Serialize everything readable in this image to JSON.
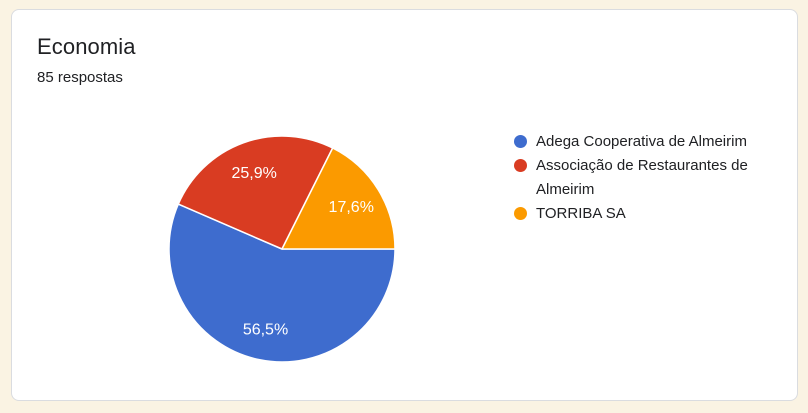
{
  "card": {
    "title": "Economia",
    "subtitle": "85 respostas"
  },
  "colors": {
    "page_background": "#faf3e3",
    "card_background": "#ffffff",
    "card_border": "#dadce0",
    "text": "#202124",
    "slice_label_text": "#ffffff"
  },
  "chart_data": {
    "type": "pie",
    "title": "Economia",
    "subtitle": "85 respostas",
    "responses_count": 85,
    "legend_position": "right",
    "start_angle_deg": 0,
    "direction": "clockwise",
    "slices": [
      {
        "label": "Adega Cooperativa de Almeirim",
        "value_percent": 56.5,
        "percent_label": "56,5%",
        "color": "#3e6cce"
      },
      {
        "label": "Associação de Restaurantes de Almeirim",
        "value_percent": 25.9,
        "percent_label": "25,9%",
        "color": "#d93c22"
      },
      {
        "label": "TORRIBA SA",
        "value_percent": 17.6,
        "percent_label": "17,6%",
        "color": "#fb9a00"
      }
    ]
  }
}
